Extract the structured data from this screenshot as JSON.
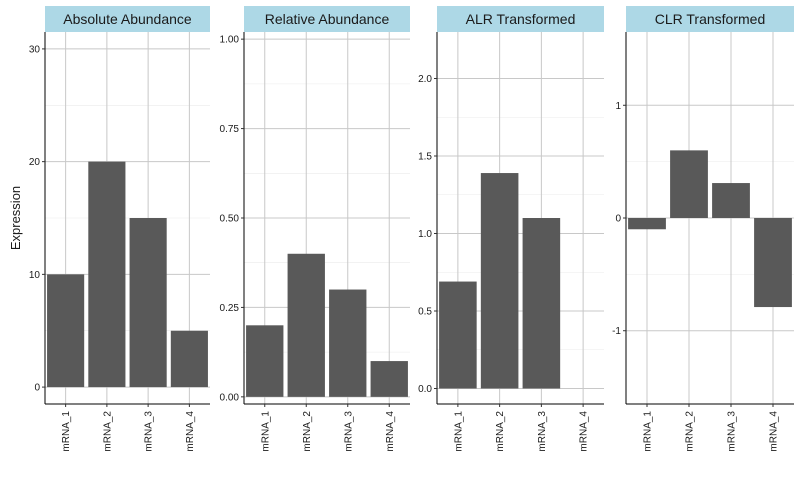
{
  "chart_data": {
    "type": "bar",
    "ylabel": "Expression",
    "categories": [
      "mRNA_1",
      "mRNA_2",
      "mRNA_3",
      "mRNA_4"
    ],
    "bar_color": "#595959",
    "strip_color": "#add8e6",
    "grid_color": "#c8c8c8",
    "panels": [
      {
        "title": "Absolute Abundance",
        "values": [
          10,
          20,
          15,
          5
        ],
        "ylim": [
          -1.5,
          31.5
        ],
        "yticks": [
          0,
          10,
          20,
          30
        ],
        "ytick_labels": [
          "0",
          "10",
          "20",
          "30"
        ]
      },
      {
        "title": "Relative Abundance",
        "values": [
          0.2,
          0.4,
          0.3,
          0.1
        ],
        "ylim": [
          -0.02,
          1.02
        ],
        "yticks": [
          0,
          0.25,
          0.5,
          0.75,
          1.0
        ],
        "ytick_labels": [
          "0.00",
          "0.25",
          "0.50",
          "0.75",
          "1.00"
        ]
      },
      {
        "title": "ALR Transformed",
        "values": [
          0.69,
          1.39,
          1.1,
          0
        ],
        "ylim": [
          -0.1,
          2.3
        ],
        "yticks": [
          0,
          0.5,
          1.0,
          1.5,
          2.0
        ],
        "ytick_labels": [
          "0.0",
          "0.5",
          "1.0",
          "1.5",
          "2.0"
        ]
      },
      {
        "title": "CLR Transformed",
        "values": [
          -0.1,
          0.6,
          0.31,
          -0.79
        ],
        "ylim": [
          -1.65,
          1.65
        ],
        "yticks": [
          -1,
          0,
          1
        ],
        "ytick_labels": [
          "-1",
          "0",
          "1"
        ]
      }
    ]
  }
}
